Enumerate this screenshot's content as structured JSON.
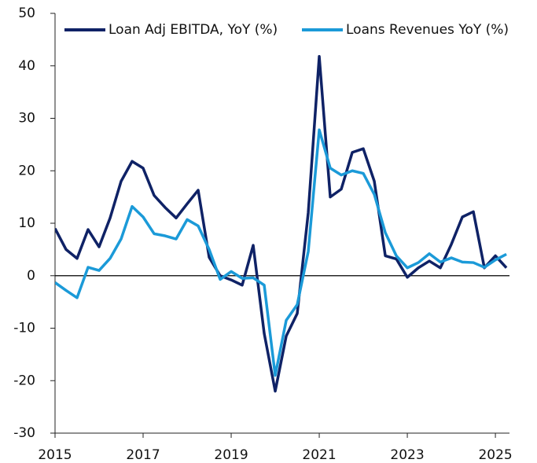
{
  "chart_data": {
    "type": "line",
    "x": [
      2015,
      2015.25,
      2015.5,
      2015.75,
      2016,
      2016.25,
      2016.5,
      2016.75,
      2017,
      2017.25,
      2017.5,
      2017.75,
      2018,
      2018.25,
      2018.5,
      2018.75,
      2019,
      2019.25,
      2019.5,
      2019.75,
      2020,
      2020.25,
      2020.5,
      2020.75,
      2021,
      2021.25,
      2021.5,
      2021.75,
      2022,
      2022.25,
      2022.5,
      2022.75,
      2023,
      2023.25,
      2023.5,
      2023.75,
      2024,
      2024.25,
      2024.5,
      2024.75,
      2025,
      2025.25
    ],
    "series": [
      {
        "name": "Loan Adj EBITDA, YoY (%)",
        "color": "#0f2266",
        "values": [
          9,
          5,
          3.3,
          8.8,
          5.5,
          11,
          18,
          21.8,
          20.5,
          15.3,
          13,
          11,
          13.7,
          16.3,
          3.5,
          0,
          -0.8,
          -1.8,
          5.8,
          -11,
          -22,
          -11.5,
          -7.2,
          12,
          41.8,
          15,
          16.5,
          23.5,
          24.2,
          18,
          3.8,
          3.2,
          -0.3,
          1.5,
          2.8,
          1.5,
          6,
          11.2,
          12.2,
          1.5,
          3.8,
          1.5
        ]
      },
      {
        "name": "Loans Revenues YoY (%)",
        "color": "#1b9ad8",
        "values": [
          -1.3,
          -2.8,
          -4.2,
          1.6,
          1,
          3.3,
          7,
          13.2,
          11.2,
          8,
          7.6,
          7,
          10.7,
          9.5,
          5,
          -0.7,
          0.8,
          -0.5,
          -0.4,
          -1.8,
          -19,
          -8.5,
          -5.5,
          4.6,
          27.8,
          20.5,
          19.2,
          20,
          19.5,
          15.5,
          8.2,
          3.8,
          1.5,
          2.5,
          4.2,
          2.6,
          3.4,
          2.6,
          2.5,
          1.6,
          3,
          4.1
        ]
      }
    ],
    "xlim": [
      2015,
      2025.32
    ],
    "xticks": [
      2015,
      2017,
      2019,
      2021,
      2023,
      2025
    ],
    "ylim": [
      -30,
      50
    ],
    "yticks": [
      -30,
      -20,
      -10,
      0,
      10,
      20,
      30,
      40,
      50
    ]
  }
}
